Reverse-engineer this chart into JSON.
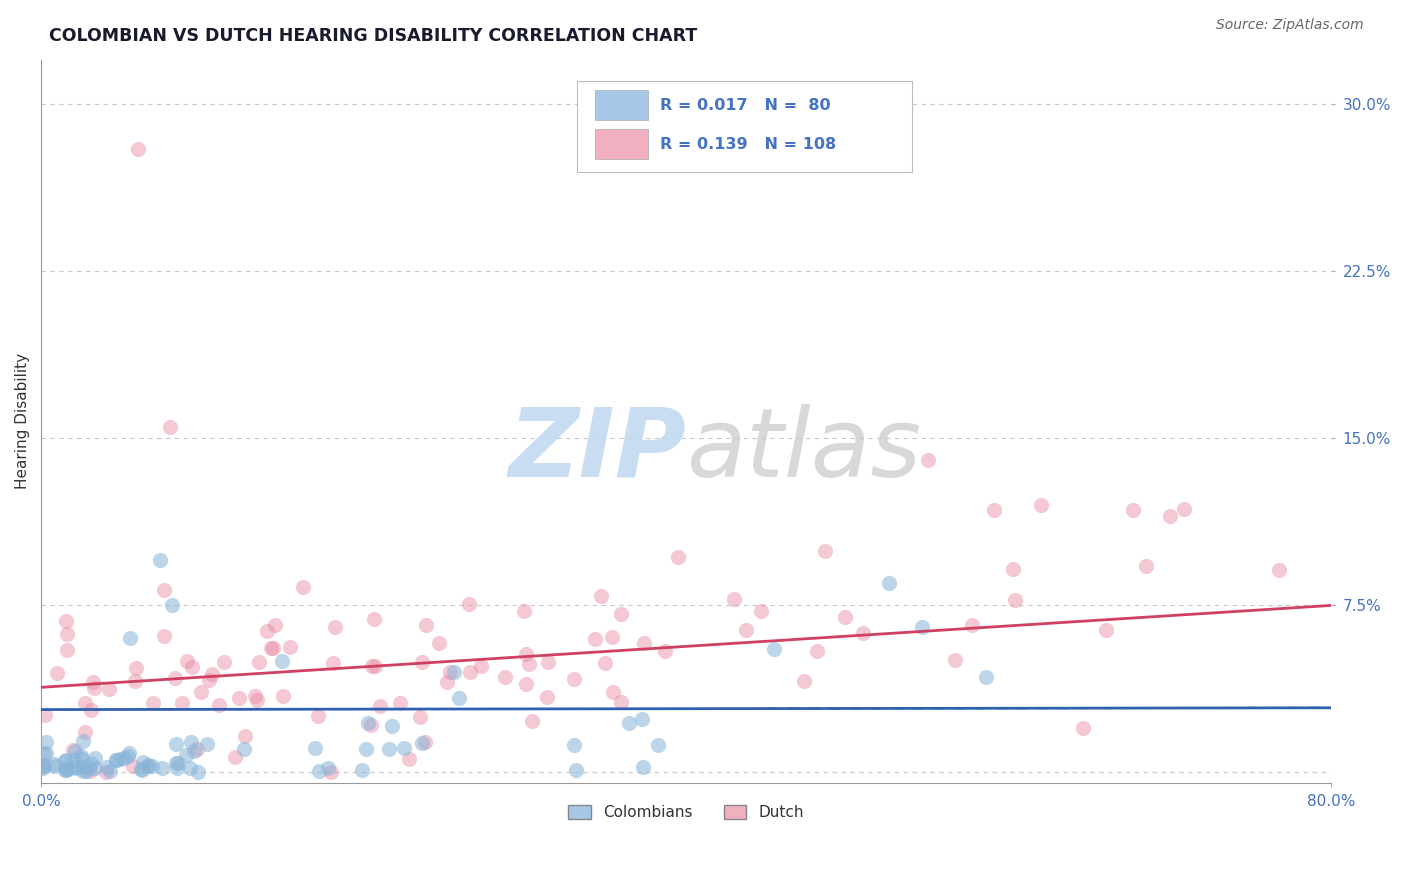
{
  "title": "COLOMBIAN VS DUTCH HEARING DISABILITY CORRELATION CHART",
  "source": "Source: ZipAtlas.com",
  "ylabel": "Hearing Disability",
  "xlim": [
    0.0,
    0.8
  ],
  "ylim": [
    -0.005,
    0.32
  ],
  "yticks": [
    0.0,
    0.075,
    0.15,
    0.225,
    0.3
  ],
  "xticks": [
    0.0,
    0.8
  ],
  "xtick_labels": [
    "0.0%",
    "80.0%"
  ],
  "grid_color": "#c8c8c8",
  "background_color": "#ffffff",
  "colombians": {
    "color": "#a8c8e8",
    "dot_color": "#88b4d8",
    "R": 0.017,
    "N": 80,
    "label": "Colombians",
    "line_color": "#3060b0",
    "line_style": "-"
  },
  "dutch": {
    "color": "#f0b0c0",
    "dot_color": "#e888a0",
    "R": 0.139,
    "N": 108,
    "label": "Dutch",
    "line_color": "#d04060",
    "line_style": "-"
  },
  "watermark_zip": "ZIP",
  "watermark_atlas": "atlas",
  "watermark_color_blue": "#c0d8f0",
  "watermark_color_gray": "#c8c8c8",
  "title_color": "#1a1a2e",
  "axis_label_color": "#555555",
  "tick_color": "#4472c4",
  "legend_color": "#4472c4",
  "col_line_intercept": 0.028,
  "col_line_slope": 0.001,
  "dutch_line_intercept": 0.038,
  "dutch_line_slope": 0.046
}
